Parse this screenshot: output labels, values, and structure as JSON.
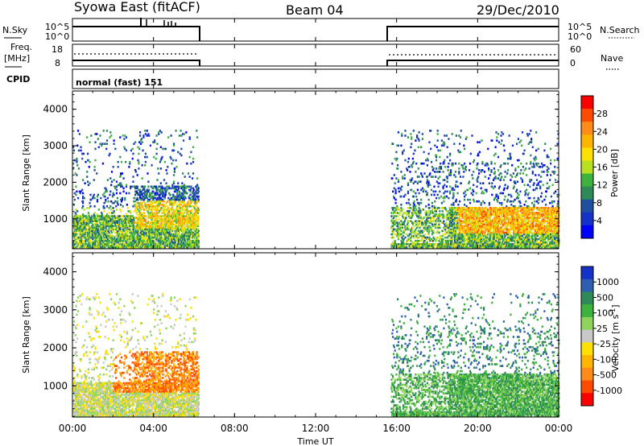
{
  "header": {
    "station": "Syowa East (fitACF)",
    "beam": "Beam 04",
    "date": "29/Dec/2010"
  },
  "noise_panel": {
    "left_label": "N.Sky",
    "right_label": "N.Search",
    "left_ticks": [
      "10^5",
      "10^0"
    ],
    "right_ticks": [
      "10^5",
      "10^0"
    ]
  },
  "freq_panel": {
    "left_label_1": "Freq.",
    "left_label_2": "[MHz]",
    "right_label": "Nave",
    "left_ticks": [
      "18",
      "8"
    ],
    "right_ticks": [
      "60",
      "0"
    ]
  },
  "cpid_panel": {
    "label": "CPID",
    "value": "normal (fast) 151"
  },
  "chart_data": [
    {
      "type": "heatmap",
      "name": "power",
      "ylabel": "Slant Range [km]",
      "xlabel": "",
      "ylim": [
        180,
        4500
      ],
      "yticks": [
        "4000",
        "3000",
        "2000",
        "1000"
      ],
      "x_hours": [
        0,
        24
      ],
      "data_windows_hours": [
        [
          0,
          6.2
        ],
        [
          15.7,
          24
        ]
      ],
      "colorbar": {
        "label": "Power [dB]",
        "ticks": [
          "28",
          "24",
          "20",
          "16",
          "12",
          "8",
          "4"
        ],
        "colors": [
          "#ff0000",
          "#ff4a00",
          "#ff8c1a",
          "#ffb400",
          "#ffe000",
          "#b8e020",
          "#3db33d",
          "#2e8b57",
          "#1e4fa0",
          "#1432c8",
          "#0000ff"
        ]
      }
    },
    {
      "type": "heatmap",
      "name": "velocity",
      "ylabel": "Slant Range [km]",
      "xlabel": "Time UT",
      "ylim": [
        180,
        4500
      ],
      "yticks": [
        "4000",
        "3000",
        "2000",
        "1000"
      ],
      "x_hours": [
        0,
        24
      ],
      "xticks": [
        "00:00",
        "04:00",
        "08:00",
        "12:00",
        "16:00",
        "20:00",
        "00:00"
      ],
      "data_windows_hours": [
        [
          0,
          6.2
        ],
        [
          15.7,
          24
        ]
      ],
      "colorbar": {
        "label": "Velocity [m s",
        "label_sup": "-1",
        "label_end": "]",
        "ticks": [
          "1000",
          "500",
          "100",
          "25",
          "-25",
          "-100",
          "-500",
          "-1000"
        ],
        "colors": [
          "#1432c8",
          "#2e5fb0",
          "#2e8b57",
          "#3db33d",
          "#8fd45a",
          "#c8c8c8",
          "#ffe000",
          "#ffb400",
          "#ff8c1a",
          "#ff4a00",
          "#ff0000"
        ]
      }
    }
  ]
}
